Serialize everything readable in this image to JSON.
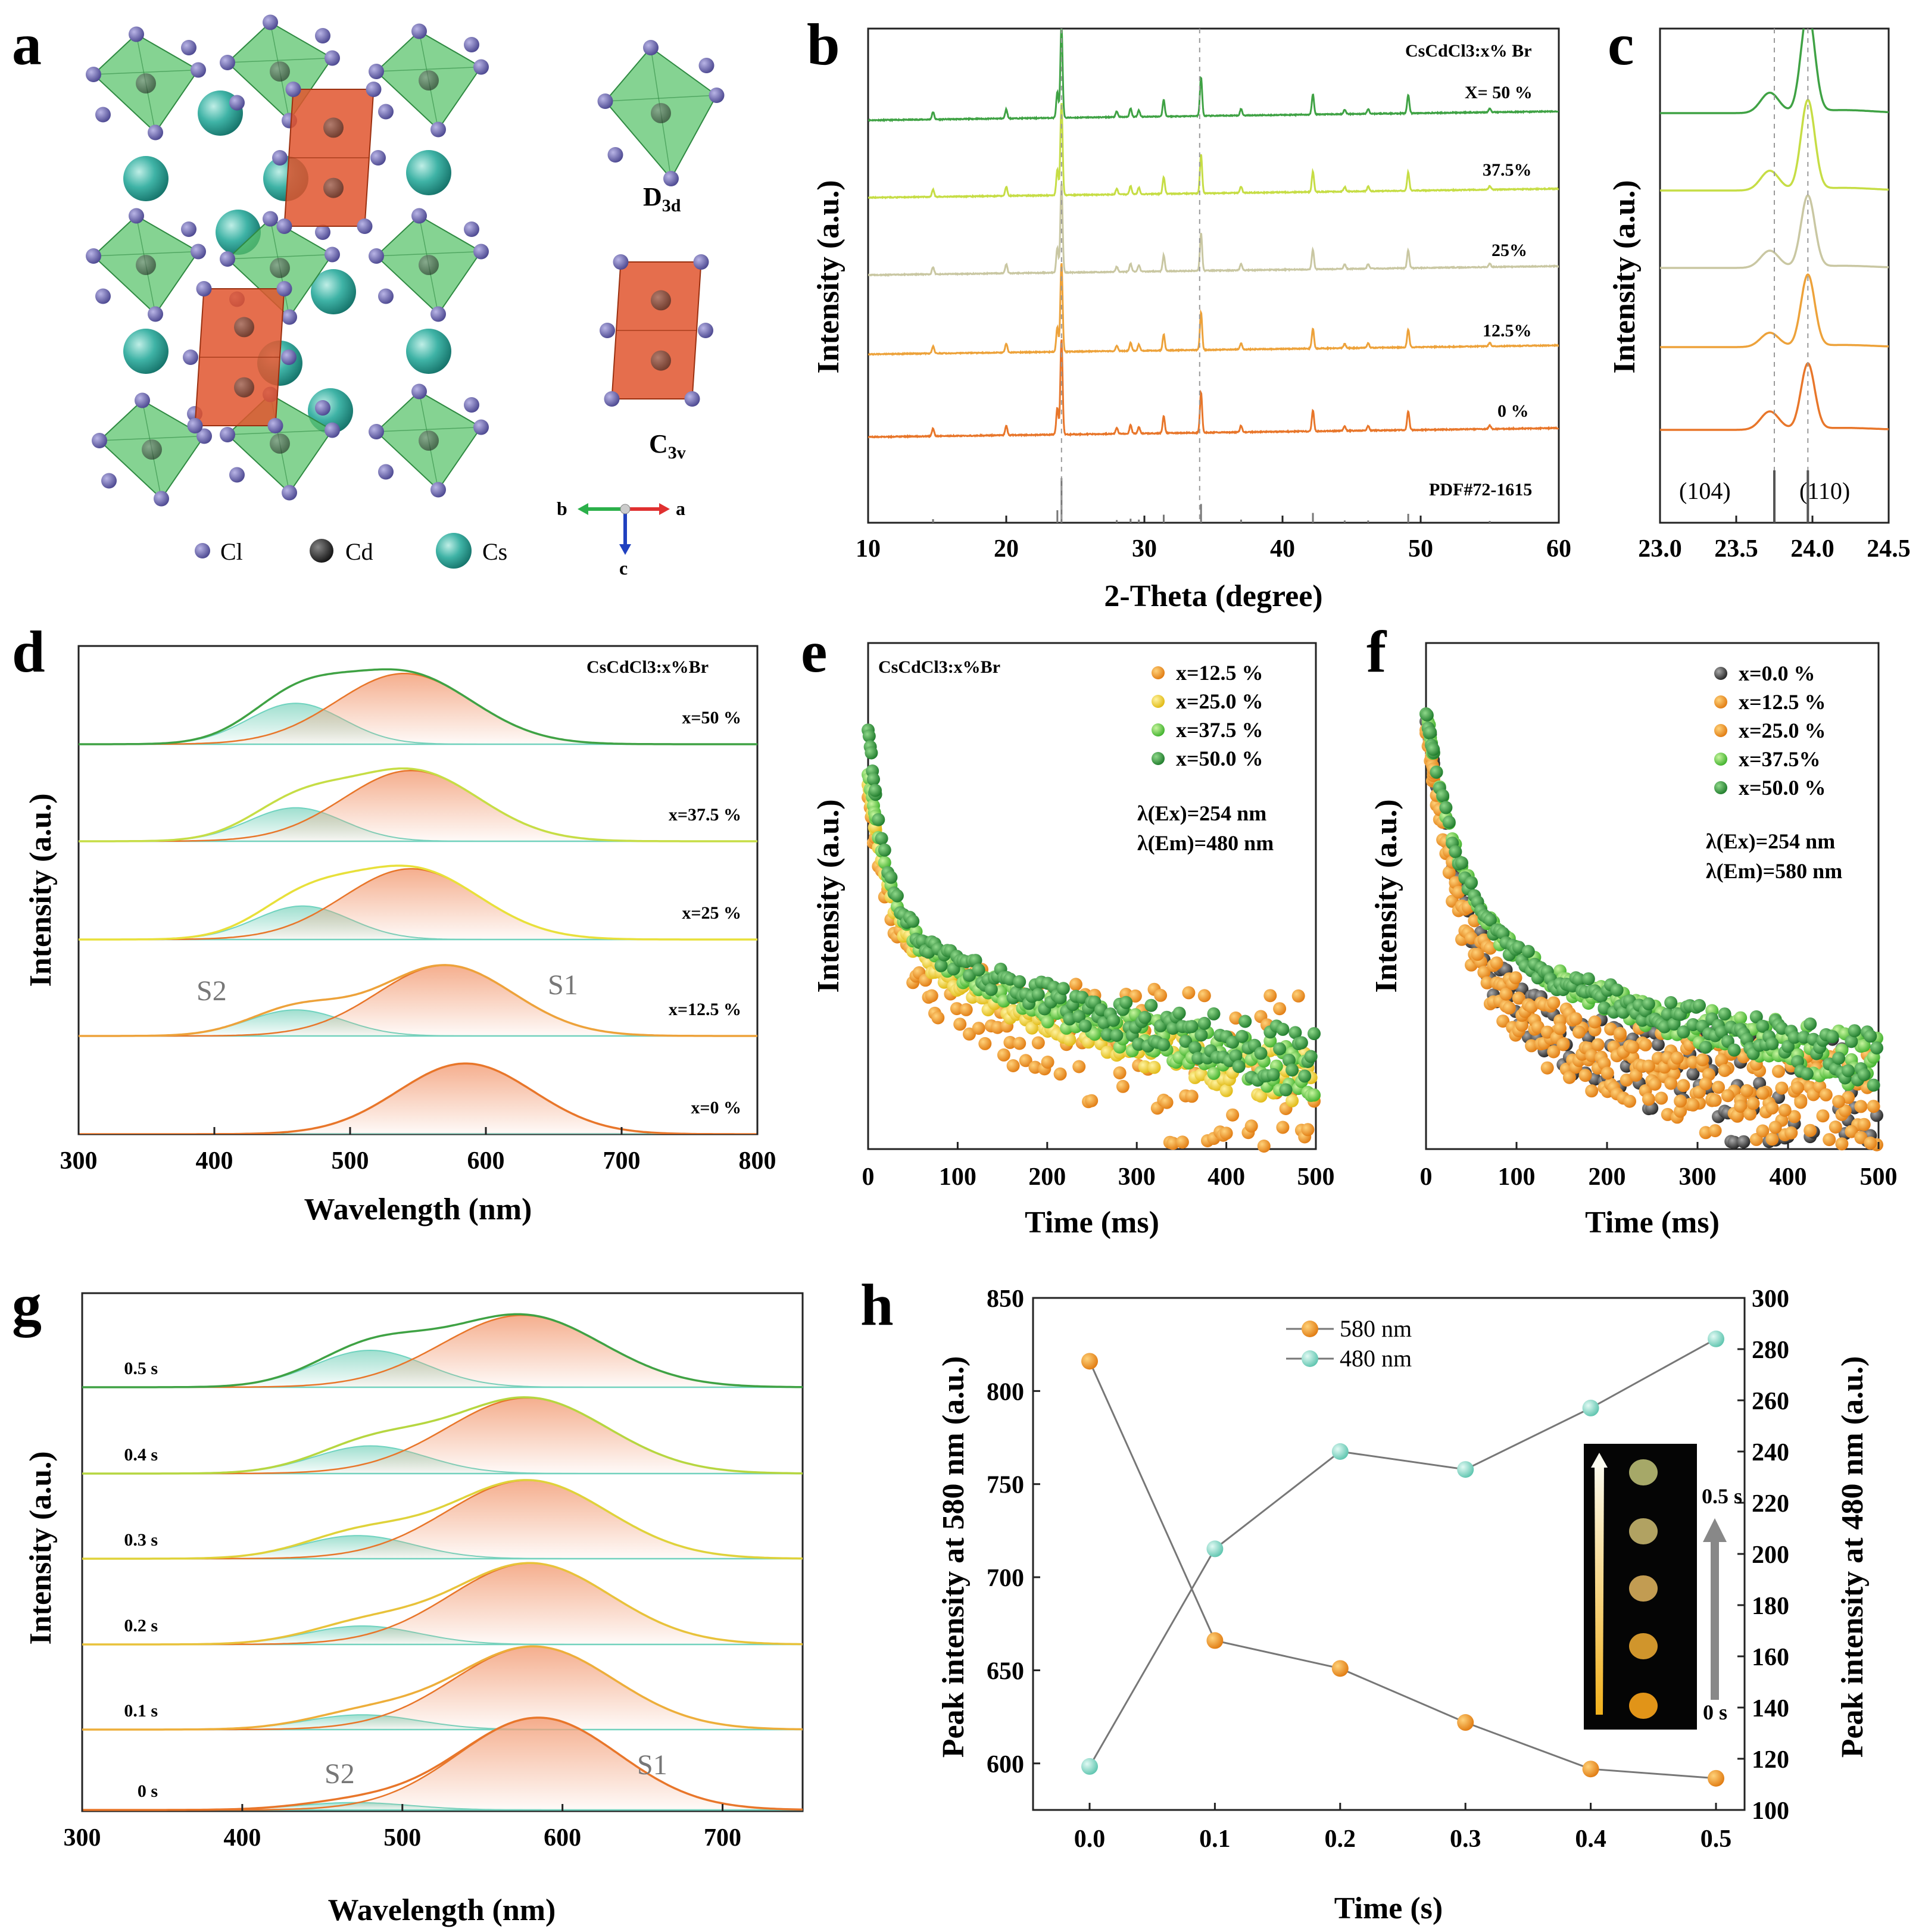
{
  "panel_labels": [
    "a",
    "b",
    "c",
    "d",
    "e",
    "f",
    "g",
    "h"
  ],
  "structure": {
    "legend": [
      "Cl",
      "Cd",
      "Cs"
    ],
    "symmetry_top": "D3d",
    "symmetry_bottom": "C3v",
    "axes": [
      "b",
      "a",
      "c"
    ]
  },
  "colors": {
    "x0": "#e8762a",
    "x12": "#eda23a",
    "x25": "#c9c7a2",
    "x37": "#c6dd45",
    "x50": "#3fa244",
    "s1_fill": "#f3a07a",
    "s2_fill": "#7fd4bf",
    "s2_line": "#6fd3bf",
    "orange_marker": "#f08a1a",
    "teal_marker": "#7fd6c2",
    "grey_marker": "#4a4a4a"
  },
  "chart_data": [
    {
      "id": "b",
      "type": "line",
      "title": "CsCdCl3:x% Br",
      "xlabel": "2-Theta (degree)",
      "ylabel": "Intensity (a.u.)",
      "xlim": [
        10,
        60
      ],
      "xticks": [
        10,
        20,
        30,
        40,
        50,
        60
      ],
      "series_labels": [
        "X= 50 %",
        "37.5%",
        "25%",
        "12.5%",
        "0 %"
      ],
      "reference": "PDF#72-1615",
      "peaks": [
        {
          "pos": 14.7,
          "h": 0.08
        },
        {
          "pos": 20.0,
          "h": 0.1
        },
        {
          "pos": 23.7,
          "h": 0.28
        },
        {
          "pos": 24.0,
          "h": 1.0
        },
        {
          "pos": 28.0,
          "h": 0.06
        },
        {
          "pos": 29.0,
          "h": 0.09
        },
        {
          "pos": 29.6,
          "h": 0.07
        },
        {
          "pos": 31.4,
          "h": 0.18
        },
        {
          "pos": 34.1,
          "h": 0.42
        },
        {
          "pos": 37.0,
          "h": 0.07
        },
        {
          "pos": 42.2,
          "h": 0.22
        },
        {
          "pos": 44.5,
          "h": 0.05
        },
        {
          "pos": 46.2,
          "h": 0.05
        },
        {
          "pos": 49.1,
          "h": 0.2
        },
        {
          "pos": 55.0,
          "h": 0.04
        }
      ],
      "dashed_lines": [
        24.0,
        34.0
      ]
    },
    {
      "id": "c",
      "type": "line",
      "xlabel": "",
      "ylabel": "Intensity (a.u.)",
      "xlim": [
        23.0,
        24.5
      ],
      "xticks": [
        "23.0",
        "23.5",
        "24.0",
        "24.5"
      ],
      "annotations": [
        "(104)",
        "(110)"
      ],
      "dashed_lines": [
        23.75,
        23.97
      ]
    },
    {
      "id": "d",
      "type": "area",
      "title": "CsCdCl3:x%Br",
      "xlabel": "Wavelength (nm)",
      "ylabel": "Intensity (a.u.)",
      "xlim": [
        300,
        800
      ],
      "xticks": [
        300,
        400,
        500,
        600,
        700,
        800
      ],
      "series": [
        {
          "name": "x=50 %",
          "s1_center": 540,
          "s1_amp": 0.95,
          "s2_center": 460,
          "s2_amp": 0.55
        },
        {
          "name": "x=37.5 %",
          "s1_center": 545,
          "s1_amp": 0.95,
          "s2_center": 460,
          "s2_amp": 0.45
        },
        {
          "name": "x=25 %",
          "s1_center": 545,
          "s1_amp": 0.95,
          "s2_center": 465,
          "s2_amp": 0.45
        },
        {
          "name": "x=12.5 %",
          "s1_center": 570,
          "s1_amp": 0.95,
          "s2_center": 460,
          "s2_amp": 0.35
        },
        {
          "name": "x=0 %",
          "s1_center": 585,
          "s1_amp": 0.95,
          "s2_center": 460,
          "s2_amp": 0.0
        }
      ],
      "annotations": [
        "S2",
        "S1"
      ]
    },
    {
      "id": "e",
      "type": "scatter",
      "title": "CsCdCl3:x%Br",
      "xlabel": "Time (ms)",
      "ylabel": "Intensity (a.u.)",
      "xlim": [
        0,
        500
      ],
      "xticks": [
        0,
        100,
        200,
        300,
        400,
        500
      ],
      "legend": [
        "x=12.5 %",
        "x=25.0 %",
        "x=37.5 %",
        "x=50.0 %"
      ],
      "conditions": [
        "λ(Ex)=254 nm",
        "λ(Em)=480 nm"
      ]
    },
    {
      "id": "f",
      "type": "scatter",
      "xlabel": "Time (ms)",
      "ylabel": "Intensity (a.u.)",
      "xlim": [
        0,
        500
      ],
      "xticks": [
        0,
        100,
        200,
        300,
        400,
        500
      ],
      "legend": [
        "x=0.0 %",
        "x=12.5 %",
        "x=25.0 %",
        "x=37.5%",
        "x=50.0 %"
      ],
      "conditions": [
        "λ(Ex)=254 nm",
        "λ(Em)=580 nm"
      ]
    },
    {
      "id": "g",
      "type": "area",
      "xlabel": "Wavelength (nm)",
      "ylabel": "Intensity (a.u.)",
      "xlim": [
        300,
        750
      ],
      "xticks": [
        300,
        400,
        500,
        600,
        700
      ],
      "series": [
        {
          "name": "0.5 s",
          "s1_center": 575,
          "s1_amp": 0.78,
          "s2_center": 480,
          "s2_amp": 0.4
        },
        {
          "name": "0.4 s",
          "s1_center": 578,
          "s1_amp": 0.82,
          "s2_center": 480,
          "s2_amp": 0.3
        },
        {
          "name": "0.3 s",
          "s1_center": 578,
          "s1_amp": 0.85,
          "s2_center": 472,
          "s2_amp": 0.25
        },
        {
          "name": "0.2 s",
          "s1_center": 580,
          "s1_amp": 0.88,
          "s2_center": 475,
          "s2_amp": 0.2
        },
        {
          "name": "0.1 s",
          "s1_center": 582,
          "s1_amp": 0.9,
          "s2_center": 475,
          "s2_amp": 0.16
        },
        {
          "name": "0 s",
          "s1_center": 585,
          "s1_amp": 1.0,
          "s2_center": 470,
          "s2_amp": 0.08
        }
      ],
      "annotations": [
        "S2",
        "S1"
      ]
    },
    {
      "id": "h",
      "type": "line",
      "xlabel": "Time (s)",
      "ylabel_left": "Peak intensity at 580 nm (a.u.)",
      "ylabel_right": "Peak intensity at 480 nm (a.u.)",
      "x": [
        0.0,
        0.1,
        0.2,
        0.3,
        0.4,
        0.5
      ],
      "xticks": [
        "0.0",
        "0.1",
        "0.2",
        "0.3",
        "0.4",
        "0.5"
      ],
      "ylim_left": [
        575,
        850
      ],
      "yticks_left": [
        600,
        650,
        700,
        750,
        800,
        850
      ],
      "ylim_right": [
        100,
        300
      ],
      "yticks_right": [
        100,
        120,
        140,
        160,
        180,
        200,
        220,
        240,
        260,
        280,
        300
      ],
      "series": [
        {
          "name": "580 nm",
          "axis": "left",
          "values": [
            816,
            666,
            651,
            622,
            597,
            592
          ]
        },
        {
          "name": "480 nm",
          "axis": "right",
          "values": [
            117,
            202,
            240,
            233,
            257,
            284
          ]
        }
      ],
      "inset_labels": [
        "0.5 s",
        "0 s"
      ]
    }
  ]
}
